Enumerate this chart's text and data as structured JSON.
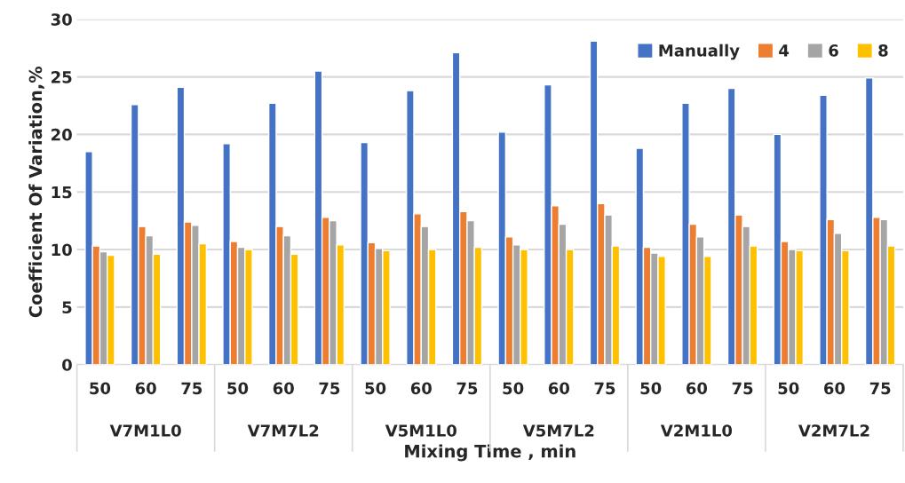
{
  "chart_data": {
    "type": "bar",
    "xlabel": "Mixing Time , min",
    "ylabel": "Coefficient Of Variation,%",
    "categories": [
      "50",
      "60",
      "75",
      "50",
      "60",
      "75",
      "50",
      "60",
      "75",
      "50",
      "60",
      "75",
      "50",
      "60",
      "75",
      "50",
      "60",
      "75"
    ],
    "annotations": [
      "V7M1L0",
      "V7M7L2",
      "V5M1L0",
      "V5M7L2",
      "V2M1L0",
      "V2M7L2"
    ],
    "series": [
      {
        "name": "Manually",
        "color": "#4472c4",
        "values": [
          18.5,
          22.6,
          24.1,
          19.2,
          22.7,
          25.5,
          19.3,
          23.8,
          27.1,
          20.2,
          24.3,
          28.1,
          18.8,
          22.7,
          24.0,
          20.0,
          23.4,
          24.9
        ]
      },
      {
        "name": "4",
        "color": "#ed7d31",
        "values": [
          10.3,
          12.0,
          12.4,
          10.7,
          12.0,
          12.8,
          10.6,
          13.1,
          13.3,
          11.1,
          13.8,
          14.0,
          10.2,
          12.2,
          13.0,
          10.7,
          12.6,
          12.8
        ]
      },
      {
        "name": "6",
        "color": "#a5a5a5",
        "values": [
          9.8,
          11.2,
          12.1,
          10.2,
          11.2,
          12.5,
          10.1,
          12.0,
          12.5,
          10.4,
          12.2,
          13.0,
          9.7,
          11.1,
          12.0,
          10.0,
          11.4,
          12.6
        ]
      },
      {
        "name": "8",
        "color": "#ffc000",
        "values": [
          9.5,
          9.6,
          10.5,
          10.0,
          9.6,
          10.4,
          9.9,
          10.0,
          10.2,
          10.0,
          10.0,
          10.3,
          9.4,
          9.4,
          10.3,
          9.9,
          9.9,
          10.3
        ]
      }
    ],
    "ylim": [
      0,
      30
    ],
    "yticks": [
      0,
      5,
      10,
      15,
      20,
      25,
      30
    ],
    "grid": "y",
    "legend": "top right"
  }
}
